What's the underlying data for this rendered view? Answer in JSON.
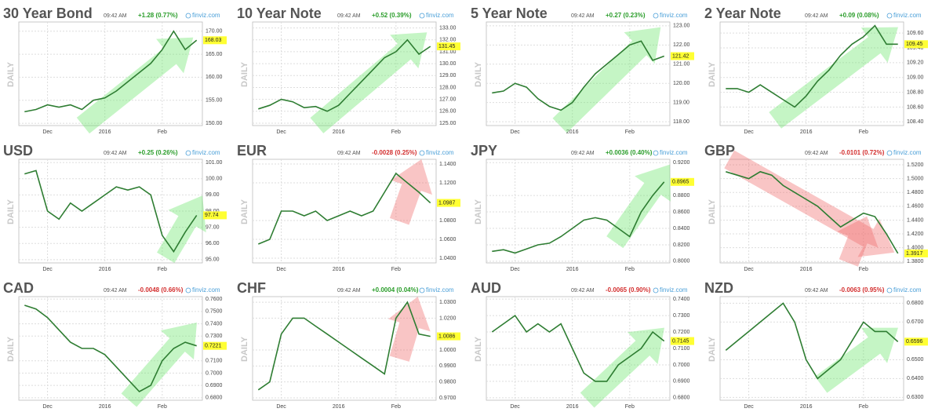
{
  "chart_data": [
    {
      "type": "line",
      "title": "30 Year Bond",
      "time": "09:42 AM",
      "change": "+1.28 (0.77%)",
      "change_color": "#2a9d2a",
      "source": "finviz.com",
      "ylabel": "DAILY",
      "color": "#2e7d32",
      "grid": true,
      "categories": [
        null,
        null,
        "Dec",
        null,
        null,
        null,
        null,
        "2016",
        null,
        null,
        null,
        null,
        "Feb",
        null,
        null,
        null
      ],
      "values": [
        152.5,
        153,
        154,
        153.5,
        154,
        153,
        155,
        155.5,
        157,
        159,
        161,
        163,
        166,
        170,
        166,
        168.03
      ],
      "ylim": [
        149.5,
        172
      ],
      "yticks": [
        {
          "value": 150,
          "label": "150.00"
        },
        {
          "value": 155,
          "label": "155.00"
        },
        {
          "value": 160,
          "label": "160.00"
        },
        {
          "value": 165,
          "label": "165.00"
        },
        {
          "value": 170,
          "label": "170.00"
        }
      ]
    },
    {
      "type": "line",
      "title": "10 Year Note",
      "time": "09:42 AM",
      "change": "+0.52 (0.39%)",
      "change_color": "#2a9d2a",
      "source": "finviz.com",
      "ylabel": "DAILY",
      "color": "#2e7d32",
      "grid": true,
      "categories": [
        null,
        null,
        "Dec",
        null,
        null,
        null,
        null,
        "2016",
        null,
        null,
        null,
        null,
        "Feb",
        null,
        null,
        null
      ],
      "values": [
        126.2,
        126.5,
        127,
        126.8,
        126.3,
        126.4,
        126,
        126.5,
        127.5,
        128.5,
        129.5,
        130.5,
        131,
        132,
        130.8,
        131.45
      ],
      "ylim": [
        124.8,
        133.5
      ],
      "yticks": [
        {
          "value": 125,
          "label": "125.00"
        },
        {
          "value": 126,
          "label": "126.00"
        },
        {
          "value": 127,
          "label": "127.00"
        },
        {
          "value": 128,
          "label": "128.00"
        },
        {
          "value": 129,
          "label": "129.00"
        },
        {
          "value": 130,
          "label": "130.00"
        },
        {
          "value": 131,
          "label": "131.00"
        },
        {
          "value": 132,
          "label": "132.00"
        },
        {
          "value": 133,
          "label": "133.00"
        }
      ]
    },
    {
      "type": "line",
      "title": "5 Year Note",
      "time": "09:42 AM",
      "change": "+0.27 (0.23%)",
      "change_color": "#2a9d2a",
      "source": "finviz.com",
      "ylabel": "DAILY",
      "color": "#2e7d32",
      "grid": true,
      "categories": [
        null,
        null,
        "Dec",
        null,
        null,
        null,
        null,
        "2016",
        null,
        null,
        null,
        null,
        "Feb",
        null,
        null,
        null
      ],
      "values": [
        119.5,
        119.6,
        120,
        119.8,
        119.2,
        118.8,
        118.6,
        119,
        119.8,
        120.5,
        121,
        121.5,
        122,
        122.2,
        121.2,
        121.42
      ],
      "ylim": [
        117.8,
        123.2
      ],
      "yticks": [
        {
          "value": 118,
          "label": "118.00"
        },
        {
          "value": 119,
          "label": "119.00"
        },
        {
          "value": 120,
          "label": "120.00"
        },
        {
          "value": 121,
          "label": "121.00"
        },
        {
          "value": 122,
          "label": "122.00"
        },
        {
          "value": 123,
          "label": "123.00"
        }
      ]
    },
    {
      "type": "line",
      "title": "2 Year Note",
      "time": "09:42 AM",
      "change": "+0.09 (0.08%)",
      "change_color": "#2a9d2a",
      "source": "finviz.com",
      "ylabel": "DAILY",
      "color": "#2e7d32",
      "grid": true,
      "categories": [
        null,
        null,
        "Dec",
        null,
        null,
        null,
        null,
        "2016",
        null,
        null,
        null,
        null,
        "Feb",
        null,
        null,
        null
      ],
      "values": [
        108.85,
        108.85,
        108.8,
        108.9,
        108.8,
        108.7,
        108.6,
        108.75,
        108.95,
        109.1,
        109.3,
        109.45,
        109.55,
        109.7,
        109.45,
        109.45
      ],
      "ylim": [
        108.35,
        109.75
      ],
      "yticks": [
        {
          "value": 108.4,
          "label": "108.40"
        },
        {
          "value": 108.6,
          "label": "108.60"
        },
        {
          "value": 108.8,
          "label": "108.80"
        },
        {
          "value": 109,
          "label": "109.00"
        },
        {
          "value": 109.2,
          "label": "109.20"
        },
        {
          "value": 109.4,
          "label": "109.40"
        },
        {
          "value": 109.6,
          "label": "109.60"
        }
      ]
    },
    {
      "type": "line",
      "title": "USD",
      "time": "09:42 AM",
      "change": "+0.25 (0.26%)",
      "change_color": "#2a9d2a",
      "source": "finviz.com",
      "ylabel": "DAILY",
      "color": "#2e7d32",
      "grid": true,
      "categories": [
        null,
        null,
        "Dec",
        null,
        null,
        null,
        null,
        "2016",
        null,
        null,
        null,
        null,
        "Feb",
        null,
        null,
        null
      ],
      "values": [
        100.3,
        100.5,
        98,
        97.5,
        98.5,
        98,
        98.5,
        99,
        99.5,
        99.3,
        99.5,
        99,
        96.5,
        95.5,
        96.7,
        97.74
      ],
      "ylim": [
        94.8,
        101.2
      ],
      "yticks": [
        {
          "value": 95,
          "label": "95.00"
        },
        {
          "value": 96,
          "label": "96.00"
        },
        {
          "value": 97,
          "label": "97.00"
        },
        {
          "value": 98,
          "label": "98.00"
        },
        {
          "value": 99,
          "label": "99.00"
        },
        {
          "value": 100,
          "label": "100.00"
        },
        {
          "value": 101,
          "label": "101.00"
        }
      ]
    },
    {
      "type": "line",
      "title": "EUR",
      "time": "09:42 AM",
      "change": "-0.0028 (0.25%)",
      "change_color": "#d32f2f",
      "source": "finviz.com",
      "ylabel": "DAILY",
      "color": "#2e7d32",
      "grid": true,
      "categories": [
        null,
        null,
        "Dec",
        null,
        null,
        null,
        null,
        "2016",
        null,
        null,
        null,
        null,
        "Feb",
        null,
        null,
        null
      ],
      "values": [
        1.055,
        1.06,
        1.09,
        1.09,
        1.085,
        1.09,
        1.08,
        1.085,
        1.09,
        1.085,
        1.09,
        1.11,
        1.13,
        1.12,
        1.11,
        1.0987
      ],
      "ylim": [
        1.035,
        1.145
      ],
      "yticks": [
        {
          "value": 1.04,
          "label": "1.0400"
        },
        {
          "value": 1.06,
          "label": "1.0600"
        },
        {
          "value": 1.08,
          "label": "1.0800"
        },
        {
          "value": 1.12,
          "label": "1.1200"
        },
        {
          "value": 1.14,
          "label": "1.1400"
        }
      ]
    },
    {
      "type": "line",
      "title": "JPY",
      "time": "09:42 AM",
      "change": "+0.0036 (0.40%)",
      "change_color": "#2a9d2a",
      "source": "finviz.com",
      "ylabel": "DAILY",
      "color": "#2e7d32",
      "grid": true,
      "categories": [
        null,
        null,
        "Dec",
        null,
        null,
        null,
        null,
        "2016",
        null,
        null,
        null,
        null,
        "Feb",
        null,
        null,
        null
      ],
      "values": [
        0.812,
        0.814,
        0.81,
        0.815,
        0.82,
        0.822,
        0.83,
        0.84,
        0.85,
        0.853,
        0.85,
        0.84,
        0.83,
        0.86,
        0.88,
        0.8965
      ],
      "ylim": [
        0.798,
        0.924
      ],
      "yticks": [
        {
          "value": 0.8,
          "label": "0.8000"
        },
        {
          "value": 0.82,
          "label": "0.8200"
        },
        {
          "value": 0.84,
          "label": "0.8400"
        },
        {
          "value": 0.86,
          "label": "0.8600"
        },
        {
          "value": 0.88,
          "label": "0.8800"
        },
        {
          "value": 0.92,
          "label": "0.9200"
        }
      ]
    },
    {
      "type": "line",
      "title": "GBP",
      "time": "09:42 AM",
      "change": "-0.0101 (0.72%)",
      "change_color": "#d32f2f",
      "source": "finviz.com",
      "ylabel": "DAILY",
      "color": "#2e7d32",
      "grid": true,
      "categories": [
        null,
        null,
        "Dec",
        null,
        null,
        null,
        null,
        "2016",
        null,
        null,
        null,
        null,
        "Feb",
        null,
        null,
        null
      ],
      "values": [
        1.51,
        1.505,
        1.5,
        1.51,
        1.505,
        1.49,
        1.48,
        1.47,
        1.46,
        1.445,
        1.43,
        1.44,
        1.45,
        1.445,
        1.42,
        1.3917
      ],
      "ylim": [
        1.378,
        1.528
      ],
      "yticks": [
        {
          "value": 1.38,
          "label": "1.3800"
        },
        {
          "value": 1.4,
          "label": "1.4000"
        },
        {
          "value": 1.42,
          "label": "1.4200"
        },
        {
          "value": 1.44,
          "label": "1.4400"
        },
        {
          "value": 1.46,
          "label": "1.4600"
        },
        {
          "value": 1.48,
          "label": "1.4800"
        },
        {
          "value": 1.5,
          "label": "1.5000"
        },
        {
          "value": 1.52,
          "label": "1.5200"
        }
      ]
    },
    {
      "type": "line",
      "title": "CAD",
      "time": "09:42 AM",
      "change": "-0.0048 (0.66%)",
      "change_color": "#d32f2f",
      "source": "finviz.com",
      "ylabel": "DAILY",
      "color": "#2e7d32",
      "grid": true,
      "categories": [
        null,
        null,
        "Dec",
        null,
        null,
        null,
        null,
        "2016",
        null,
        null,
        null,
        null,
        "Feb",
        null,
        null,
        null
      ],
      "values": [
        0.755,
        0.752,
        0.745,
        0.735,
        0.725,
        0.72,
        0.72,
        0.715,
        0.705,
        0.695,
        0.685,
        0.69,
        0.71,
        0.72,
        0.725,
        0.7221
      ],
      "ylim": [
        0.678,
        0.762
      ],
      "yticks": [
        {
          "value": 0.68,
          "label": "0.6800"
        },
        {
          "value": 0.69,
          "label": "0.6900"
        },
        {
          "value": 0.7,
          "label": "0.7000"
        },
        {
          "value": 0.71,
          "label": "0.7100"
        },
        {
          "value": 0.73,
          "label": "0.7300"
        },
        {
          "value": 0.74,
          "label": "0.7400"
        },
        {
          "value": 0.75,
          "label": "0.7500"
        },
        {
          "value": 0.76,
          "label": "0.7600"
        }
      ]
    },
    {
      "type": "line",
      "title": "CHF",
      "time": "09:42 AM",
      "change": "+0.0004 (0.04%)",
      "change_color": "#2a9d2a",
      "source": "finviz.com",
      "ylabel": "DAILY",
      "color": "#2e7d32",
      "grid": true,
      "categories": [
        null,
        null,
        "Dec",
        null,
        null,
        null,
        null,
        "2016",
        null,
        null,
        null,
        null,
        "Feb",
        null,
        null,
        null
      ],
      "values": [
        0.975,
        0.98,
        1.01,
        1.02,
        1.02,
        1.015,
        1.01,
        1.005,
        1.0,
        0.995,
        0.99,
        0.985,
        1.02,
        1.03,
        1.01,
        1.0086
      ],
      "ylim": [
        0.9685,
        1.0335
      ],
      "yticks": [
        {
          "value": 0.97,
          "label": "0.9700"
        },
        {
          "value": 0.98,
          "label": "0.9800"
        },
        {
          "value": 0.99,
          "label": "0.9900"
        },
        {
          "value": 1.0,
          "label": "1.0000"
        },
        {
          "value": 1.02,
          "label": "1.0200"
        },
        {
          "value": 1.03,
          "label": "1.0300"
        }
      ]
    },
    {
      "type": "line",
      "title": "AUD",
      "time": "09:42 AM",
      "change": "-0.0065 (0.90%)",
      "change_color": "#d32f2f",
      "source": "finviz.com",
      "ylabel": "DAILY",
      "color": "#2e7d32",
      "grid": true,
      "categories": [
        null,
        null,
        "Dec",
        null,
        null,
        null,
        null,
        "2016",
        null,
        null,
        null,
        null,
        "Feb",
        null,
        null,
        null
      ],
      "values": [
        0.72,
        0.725,
        0.73,
        0.72,
        0.725,
        0.72,
        0.725,
        0.71,
        0.695,
        0.69,
        0.69,
        0.7,
        0.705,
        0.71,
        0.72,
        0.7145
      ],
      "ylim": [
        0.6785,
        0.7415
      ],
      "yticks": [
        {
          "value": 0.68,
          "label": "0.6800"
        },
        {
          "value": 0.69,
          "label": "0.6900"
        },
        {
          "value": 0.7,
          "label": "0.7000"
        },
        {
          "value": 0.71,
          "label": "0.7100"
        },
        {
          "value": 0.72,
          "label": "0.7200"
        },
        {
          "value": 0.73,
          "label": "0.7300"
        },
        {
          "value": 0.74,
          "label": "0.7400"
        }
      ]
    },
    {
      "type": "line",
      "title": "NZD",
      "time": "09:42 AM",
      "change": "-0.0063 (0.95%)",
      "change_color": "#d32f2f",
      "source": "finviz.com",
      "ylabel": "DAILY",
      "color": "#2e7d32",
      "grid": true,
      "categories": [
        null,
        null,
        "Dec",
        null,
        null,
        null,
        null,
        "2016",
        null,
        null,
        null,
        null,
        "Feb",
        null,
        null,
        null
      ],
      "values": [
        0.655,
        0.66,
        0.665,
        0.67,
        0.675,
        0.68,
        0.67,
        0.65,
        0.64,
        0.645,
        0.65,
        0.66,
        0.67,
        0.665,
        0.665,
        0.6596
      ],
      "ylim": [
        0.6285,
        0.6835
      ],
      "yticks": [
        {
          "value": 0.63,
          "label": "0.6300"
        },
        {
          "value": 0.64,
          "label": "0.6400"
        },
        {
          "value": 0.65,
          "label": "0.6500"
        },
        {
          "value": 0.67,
          "label": "0.6700"
        },
        {
          "value": 0.68,
          "label": "0.6800"
        }
      ]
    }
  ]
}
